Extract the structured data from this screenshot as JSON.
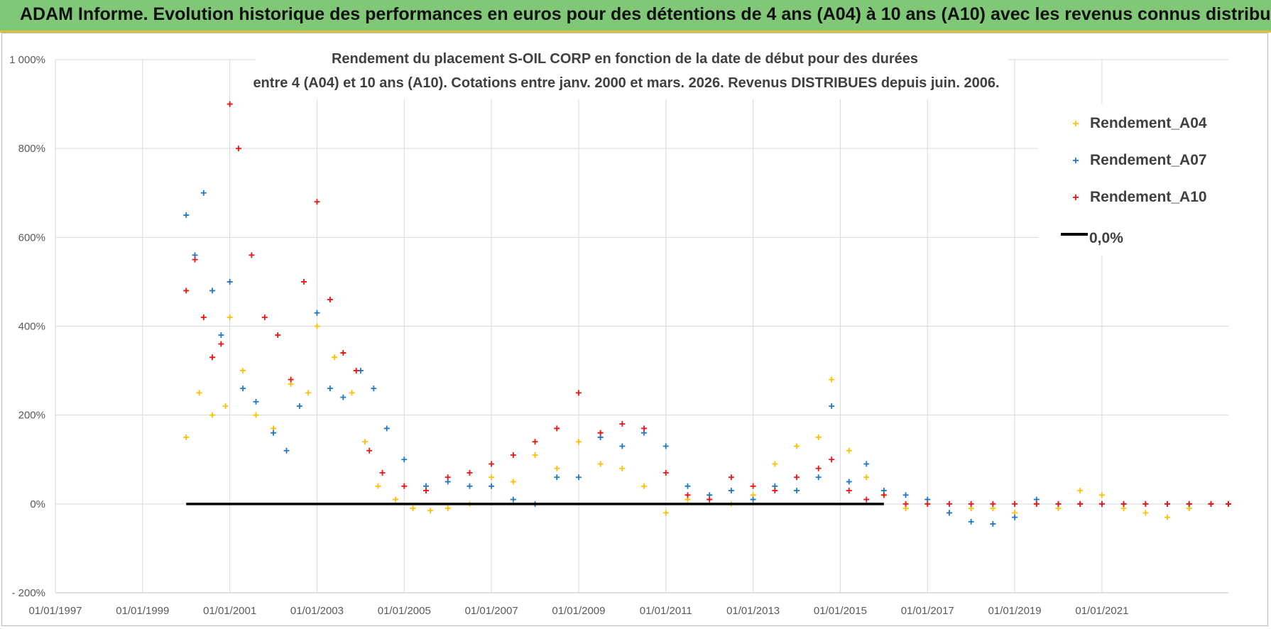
{
  "banner": {
    "title": "ADAM Informe. Evolution historique des performances en euros pour des détentions de 4 ans (A04) à 10 ans (A10) avec les revenus connus distribués"
  },
  "chart_data": {
    "type": "scatter",
    "title_line1": "Rendement du placement S-OIL CORP en fonction de la date de début pour des durées",
    "title_line2": "entre 4 (A04) et 10 ans (A10).  Cotations entre janv. 2000 et mars. 2026.  Revenus DISTRIBUES depuis juin. 2006.",
    "xlabel": "",
    "ylabel": "",
    "x_range": [
      1997.0,
      2023.9
    ],
    "ylim": [
      -200,
      1000
    ],
    "y_ticks": [
      -200,
      0,
      200,
      400,
      600,
      800,
      1000
    ],
    "y_tick_labels": [
      "- 200%",
      "0%",
      "200%",
      "400%",
      "600%",
      "800%",
      "1 000%"
    ],
    "x_ticks": [
      1997,
      1999,
      2001,
      2003,
      2005,
      2007,
      2009,
      2011,
      2013,
      2015,
      2017,
      2019,
      2021
    ],
    "x_tick_labels": [
      "01/01/1997",
      "01/01/1999",
      "01/01/2001",
      "01/01/2003",
      "01/01/2005",
      "01/01/2007",
      "01/01/2009",
      "01/01/2011",
      "01/01/2013",
      "01/01/2015",
      "01/01/2017",
      "01/01/2019",
      "01/01/2021"
    ],
    "grid": true,
    "legend_position": "top-right",
    "series": [
      {
        "name": "Rendement_A04",
        "color": "#ffc000",
        "marker": "+",
        "x": [
          2000.0,
          2000.3,
          2000.6,
          2000.9,
          2001.0,
          2001.3,
          2001.6,
          2002.0,
          2002.4,
          2002.8,
          2003.0,
          2003.4,
          2003.8,
          2004.1,
          2004.4,
          2004.8,
          2005.2,
          2005.6,
          2006.0,
          2006.5,
          2007.0,
          2007.5,
          2008.0,
          2008.5,
          2009.0,
          2009.5,
          2010.0,
          2010.5,
          2011.0,
          2011.5,
          2012.0,
          2012.5,
          2013.0,
          2013.5,
          2014.0,
          2014.5,
          2014.8,
          2015.2,
          2015.6,
          2016.0,
          2016.5,
          2017.0,
          2017.5,
          2018.0,
          2018.5,
          2019.0,
          2019.5,
          2020.0,
          2020.5,
          2021.0,
          2021.5,
          2022.0,
          2022.5,
          2023.0,
          2023.5,
          2023.9
        ],
        "y": [
          150,
          250,
          200,
          220,
          420,
          300,
          200,
          170,
          270,
          250,
          400,
          330,
          250,
          140,
          40,
          10,
          -10,
          -15,
          -10,
          0,
          60,
          50,
          110,
          80,
          140,
          90,
          80,
          40,
          -20,
          10,
          20,
          0,
          20,
          90,
          130,
          150,
          280,
          120,
          60,
          20,
          -10,
          0,
          -20,
          -10,
          -10,
          -20,
          0,
          -10,
          30,
          20,
          -10,
          -20,
          -30,
          -10,
          0,
          0
        ]
      },
      {
        "name": "Rendement_A07",
        "color": "#1f78c4",
        "marker": "+",
        "x": [
          2000.0,
          2000.2,
          2000.4,
          2000.6,
          2000.8,
          2001.0,
          2001.3,
          2001.6,
          2002.0,
          2002.3,
          2002.6,
          2003.0,
          2003.3,
          2003.6,
          2004.0,
          2004.3,
          2004.6,
          2005.0,
          2005.5,
          2006.0,
          2006.5,
          2007.0,
          2007.5,
          2008.0,
          2008.5,
          2009.0,
          2009.5,
          2010.0,
          2010.5,
          2011.0,
          2011.5,
          2012.0,
          2012.5,
          2013.0,
          2013.5,
          2014.0,
          2014.5,
          2014.8,
          2015.2,
          2015.6,
          2016.0,
          2016.5,
          2017.0,
          2017.5,
          2018.0,
          2018.5,
          2019.0,
          2019.5,
          2020.0,
          2020.5,
          2021.0,
          2021.5,
          2022.0,
          2022.5,
          2023.0,
          2023.5,
          2023.9
        ],
        "y": [
          650,
          560,
          700,
          480,
          380,
          500,
          260,
          230,
          160,
          120,
          220,
          430,
          260,
          240,
          300,
          260,
          170,
          100,
          40,
          50,
          40,
          40,
          10,
          0,
          60,
          60,
          150,
          130,
          160,
          130,
          40,
          20,
          30,
          10,
          40,
          30,
          60,
          220,
          50,
          90,
          30,
          20,
          10,
          -20,
          -40,
          -45,
          -30,
          10,
          0,
          0,
          0,
          0,
          0,
          0,
          0,
          0,
          0
        ]
      },
      {
        "name": "Rendement_A10",
        "color": "#ee1111",
        "marker": "+",
        "x": [
          2000.0,
          2000.2,
          2000.4,
          2000.6,
          2000.8,
          2001.0,
          2001.2,
          2001.5,
          2001.8,
          2002.1,
          2002.4,
          2002.7,
          2003.0,
          2003.3,
          2003.6,
          2003.9,
          2004.2,
          2004.5,
          2005.0,
          2005.5,
          2006.0,
          2006.5,
          2007.0,
          2007.5,
          2008.0,
          2008.5,
          2009.0,
          2009.5,
          2010.0,
          2010.5,
          2011.0,
          2011.5,
          2012.0,
          2012.5,
          2013.0,
          2013.5,
          2014.0,
          2014.5,
          2014.8,
          2015.2,
          2015.6,
          2016.0,
          2016.5,
          2017.0,
          2017.5,
          2018.0,
          2018.5,
          2019.0,
          2019.5,
          2020.0,
          2020.5,
          2021.0,
          2021.5,
          2022.0,
          2022.5,
          2023.0,
          2023.5,
          2023.9
        ],
        "y": [
          480,
          550,
          420,
          330,
          360,
          900,
          800,
          560,
          420,
          380,
          280,
          500,
          680,
          460,
          340,
          300,
          120,
          70,
          40,
          30,
          60,
          70,
          90,
          110,
          140,
          170,
          250,
          160,
          180,
          170,
          70,
          20,
          10,
          60,
          40,
          30,
          60,
          80,
          100,
          30,
          10,
          20,
          0,
          0,
          0,
          0,
          0,
          0,
          0,
          0,
          0,
          0,
          0,
          0,
          0,
          0,
          0,
          0
        ]
      }
    ],
    "reference_line": {
      "name": "0,0%",
      "value": 0,
      "from_x": 2000.0,
      "to_x": 2016.0,
      "color": "#000000"
    }
  }
}
